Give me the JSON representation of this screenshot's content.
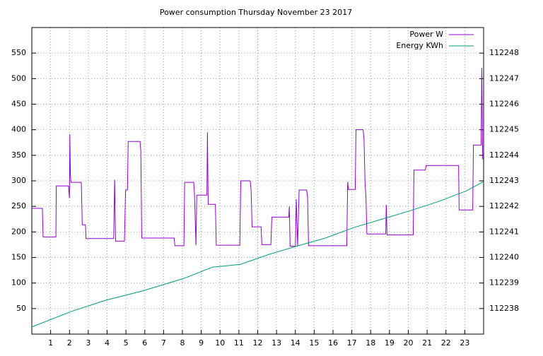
{
  "chart_data": {
    "type": "line",
    "title": "Power consumption Thursday November 23 2017",
    "xlim": [
      0,
      24
    ],
    "xticks": [
      1,
      2,
      3,
      4,
      5,
      6,
      7,
      8,
      9,
      10,
      11,
      12,
      13,
      14,
      15,
      16,
      17,
      18,
      19,
      20,
      21,
      22,
      23
    ],
    "ylim": [
      0,
      600
    ],
    "yticks": [
      50,
      100,
      150,
      200,
      250,
      300,
      350,
      400,
      450,
      500,
      550
    ],
    "y2lim": [
      112237,
      112249
    ],
    "y2ticks": [
      112238,
      112239,
      112240,
      112241,
      112242,
      112243,
      112244,
      112245,
      112246,
      112247,
      112248
    ],
    "grid": true,
    "legend": "top-right",
    "series": [
      {
        "name": "Power W",
        "color": "#9400d3",
        "x": [
          0,
          0.56,
          0.6,
          1.28,
          1.3,
          1.95,
          2.0,
          2.02,
          2.05,
          2.08,
          2.1,
          2.63,
          2.68,
          2.85,
          2.88,
          4.32,
          4.35,
          4.4,
          4.45,
          4.92,
          4.98,
          5.08,
          5.12,
          5.75,
          5.79,
          5.84,
          7.56,
          7.6,
          8.08,
          8.12,
          8.6,
          8.64,
          8.72,
          8.76,
          9.3,
          9.33,
          9.37,
          9.4,
          9.75,
          9.8,
          11.05,
          11.1,
          11.6,
          11.65,
          11.7,
          12.18,
          12.22,
          12.7,
          12.75,
          13.65,
          13.68,
          13.72,
          13.76,
          14.0,
          14.05,
          14.12,
          14.2,
          14.6,
          14.65,
          14.7,
          16.73,
          16.78,
          16.82,
          17.18,
          17.22,
          17.6,
          17.65,
          17.7,
          17.75,
          17.8,
          18.8,
          18.83,
          18.87,
          20.26,
          20.3,
          20.9,
          20.95,
          22.67,
          22.7,
          23.42,
          23.46,
          23.87,
          23.9,
          23.95,
          24
        ],
        "values": [
          246,
          246,
          190,
          190,
          290,
          290,
          266,
          391,
          310,
          297,
          297,
          297,
          214,
          214,
          187,
          187,
          187,
          302,
          182,
          182,
          282,
          282,
          377,
          377,
          359,
          188,
          188,
          173,
          173,
          297,
          297,
          276,
          174,
          272,
          272,
          395,
          254,
          254,
          254,
          174,
          174,
          300,
          300,
          281,
          210,
          210,
          175,
          175,
          229,
          229,
          250,
          172,
          172,
          172,
          264,
          172,
          282,
          282,
          268,
          173,
          173,
          298,
          283,
          283,
          400,
          400,
          379,
          297,
          268,
          196,
          196,
          253,
          194,
          194,
          321,
          321,
          330,
          330,
          243,
          243,
          370,
          370,
          521,
          343,
          343
        ]
      },
      {
        "name": "Energy KWh",
        "color": "#009e73",
        "axis": "y2",
        "x": [
          0,
          2.07,
          3.95,
          5.83,
          8.08,
          9.59,
          11.09,
          12.6,
          14.1,
          15.6,
          17.1,
          18.6,
          20.1,
          21.6,
          23.1,
          24
        ],
        "values": [
          112237.28,
          112237.88,
          112238.33,
          112238.68,
          112239.18,
          112239.62,
          112239.73,
          112240.12,
          112240.45,
          112240.76,
          112241.17,
          112241.5,
          112241.83,
          112242.19,
          112242.61,
          112242.97
        ]
      }
    ]
  }
}
